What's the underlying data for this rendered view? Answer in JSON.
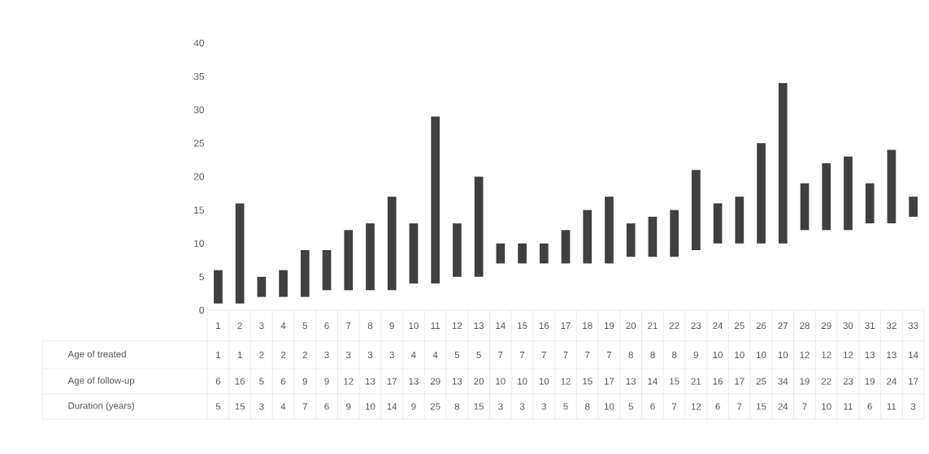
{
  "chart_data": {
    "type": "bar",
    "categories": [
      "1",
      "2",
      "3",
      "4",
      "5",
      "6",
      "7",
      "8",
      "9",
      "10",
      "11",
      "12",
      "13",
      "14",
      "15",
      "16",
      "17",
      "18",
      "19",
      "20",
      "21",
      "22",
      "23",
      "24",
      "25",
      "26",
      "27",
      "28",
      "29",
      "30",
      "31",
      "32",
      "33"
    ],
    "series": [
      {
        "name": "Duration (years)",
        "color": "#404040",
        "base": [
          1,
          1,
          2,
          2,
          2,
          3,
          3,
          3,
          3,
          4,
          4,
          5,
          5,
          7,
          7,
          7,
          7,
          7,
          7,
          8,
          8,
          8,
          9,
          10,
          10,
          10,
          10,
          12,
          12,
          12,
          13,
          13,
          14
        ],
        "values": [
          5,
          15,
          3,
          4,
          7,
          6,
          9,
          10,
          14,
          9,
          25,
          8,
          15,
          3,
          3,
          3,
          5,
          8,
          10,
          5,
          6,
          7,
          12,
          6,
          7,
          15,
          24,
          7,
          10,
          11,
          6,
          11,
          3
        ]
      }
    ],
    "ylim": [
      0,
      40
    ],
    "yticks": [
      0,
      5,
      10,
      15,
      20,
      25,
      30,
      35,
      40
    ],
    "data_labels": true,
    "annotations": [
      "Age of treated",
      "1",
      "1",
      "2",
      "2",
      "2",
      "3",
      "3",
      "3",
      "3",
      "4",
      "4",
      "5",
      "5",
      "7",
      "7",
      "7",
      "7",
      "7",
      "7",
      "8",
      "8",
      "8",
      "9",
      "10",
      "10",
      "10",
      "10",
      "12",
      "12",
      "12",
      "13",
      "13",
      "14",
      "Age of follow-up",
      "6",
      "16",
      "5",
      "6",
      "9",
      "9",
      "12",
      "13",
      "17",
      "13",
      "29",
      "13",
      "20",
      "10",
      "10",
      "10",
      "12",
      "15",
      "17",
      "13",
      "14",
      "15",
      "21",
      "16",
      "17",
      "25",
      "34",
      "19",
      "22",
      "23",
      "19",
      "24",
      "17"
    ]
  }
}
